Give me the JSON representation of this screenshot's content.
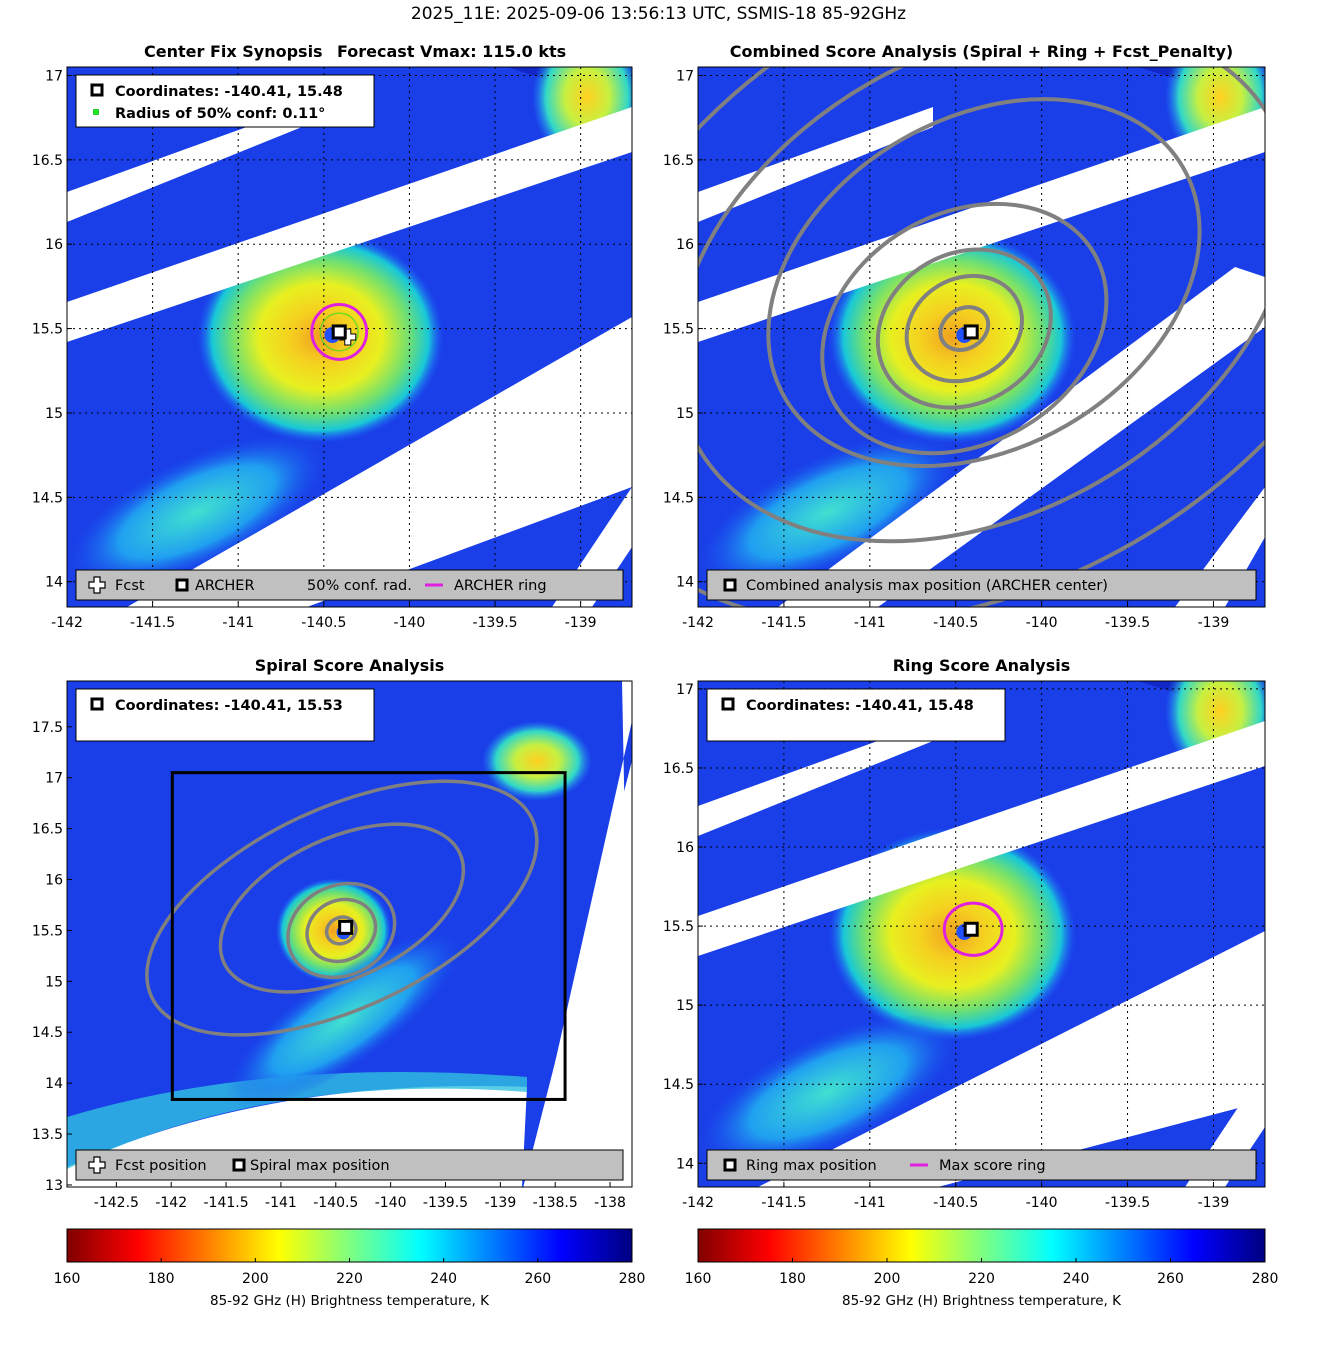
{
  "suptitle": "2025_11E: 2025-09-06 13:56:13 UTC, SSMIS-18 85-92GHz",
  "colors": {
    "archer_ring": "#e020e0",
    "conf_dot": "#22dd22",
    "contour": "#808080",
    "legend_bg": "#c0c0c0",
    "no_data": "#ffffff"
  },
  "chart_data": [
    {
      "type": "heatmap",
      "title_left": "Center Fix Synopsis",
      "title_right": "Forecast Vmax: 115.0 kts",
      "xlim": [
        -142.0,
        -138.7
      ],
      "ylim": [
        13.85,
        17.05
      ],
      "xticks": [
        "-142",
        "-141.5",
        "-141",
        "-140.5",
        "-140",
        "-139.5",
        "-139"
      ],
      "yticks": [
        "14",
        "14.5",
        "15",
        "15.5",
        "16",
        "16.5",
        "17"
      ],
      "grid": "dotted",
      "info_lines": [
        "Coordinates: -140.41, 15.48",
        "Radius of 50% conf: 0.11°"
      ],
      "legend": [
        "Fcst",
        "ARCHER",
        "50% conf. rad.",
        "ARCHER ring"
      ],
      "archer_center": [
        -140.41,
        15.48
      ],
      "fcst_position": [
        -140.36,
        15.45
      ],
      "ring_radius_deg": 0.16,
      "conf_radius_deg": 0.11
    },
    {
      "type": "heatmap",
      "title": "Combined Score Analysis (Spiral + Ring + Fcst_Penalty)",
      "xlim": [
        -142.0,
        -138.7
      ],
      "ylim": [
        13.85,
        17.05
      ],
      "xticks": [
        "-142",
        "-141.5",
        "-141",
        "-140.5",
        "-140",
        "-139.5",
        "-139"
      ],
      "yticks": [
        "14",
        "14.5",
        "15",
        "15.5",
        "16",
        "16.5",
        "17"
      ],
      "grid": "dotted",
      "contours": "score",
      "legend": [
        "Combined analysis max position (ARCHER center)"
      ],
      "archer_center": [
        -140.41,
        15.48
      ]
    },
    {
      "type": "heatmap",
      "title": "Spiral Score Analysis",
      "xlim": [
        -142.95,
        -137.8
      ],
      "ylim": [
        12.98,
        17.95
      ],
      "xticks": [
        "-142.5",
        "-142",
        "-141.5",
        "-141",
        "-140.5",
        "-140",
        "-139.5",
        "-139",
        "-138.5",
        "-138"
      ],
      "yticks": [
        "13",
        "13.5",
        "14",
        "14.5",
        "15",
        "15.5",
        "16",
        "16.5",
        "17",
        "17.5"
      ],
      "grid": "off",
      "info_lines": [
        "Coordinates: -140.41, 15.53"
      ],
      "legend": [
        "Fcst position",
        "Spiral max position"
      ],
      "spiral_center": [
        -140.41,
        15.53
      ],
      "search_box": {
        "lon": [
          -141.99,
          -138.41
        ],
        "lat": [
          13.84,
          17.05
        ]
      }
    },
    {
      "type": "heatmap",
      "title": "Ring Score Analysis",
      "xlim": [
        -142.0,
        -138.7
      ],
      "ylim": [
        13.85,
        17.05
      ],
      "xticks": [
        "-142",
        "-141.5",
        "-141",
        "-140.5",
        "-140",
        "-139.5",
        "-139"
      ],
      "yticks": [
        "14",
        "14.5",
        "15",
        "15.5",
        "16",
        "16.5",
        "17"
      ],
      "grid": "dotted",
      "info_lines": [
        "Coordinates: -140.41, 15.48"
      ],
      "legend": [
        "Ring max position",
        "Max score ring"
      ],
      "ring_center": [
        -140.41,
        15.48
      ],
      "ring_radius_deg": 0.16
    }
  ],
  "colorbars": [
    {
      "ticks": [
        "160",
        "180",
        "200",
        "220",
        "240",
        "260",
        "280"
      ],
      "label": "85-92 GHz (H) Brightness temperature, K",
      "range": [
        160,
        280
      ]
    },
    {
      "ticks": [
        "160",
        "180",
        "200",
        "220",
        "240",
        "260",
        "280"
      ],
      "label": "85-92 GHz (H) Brightness temperature, K",
      "range": [
        160,
        280
      ]
    }
  ]
}
